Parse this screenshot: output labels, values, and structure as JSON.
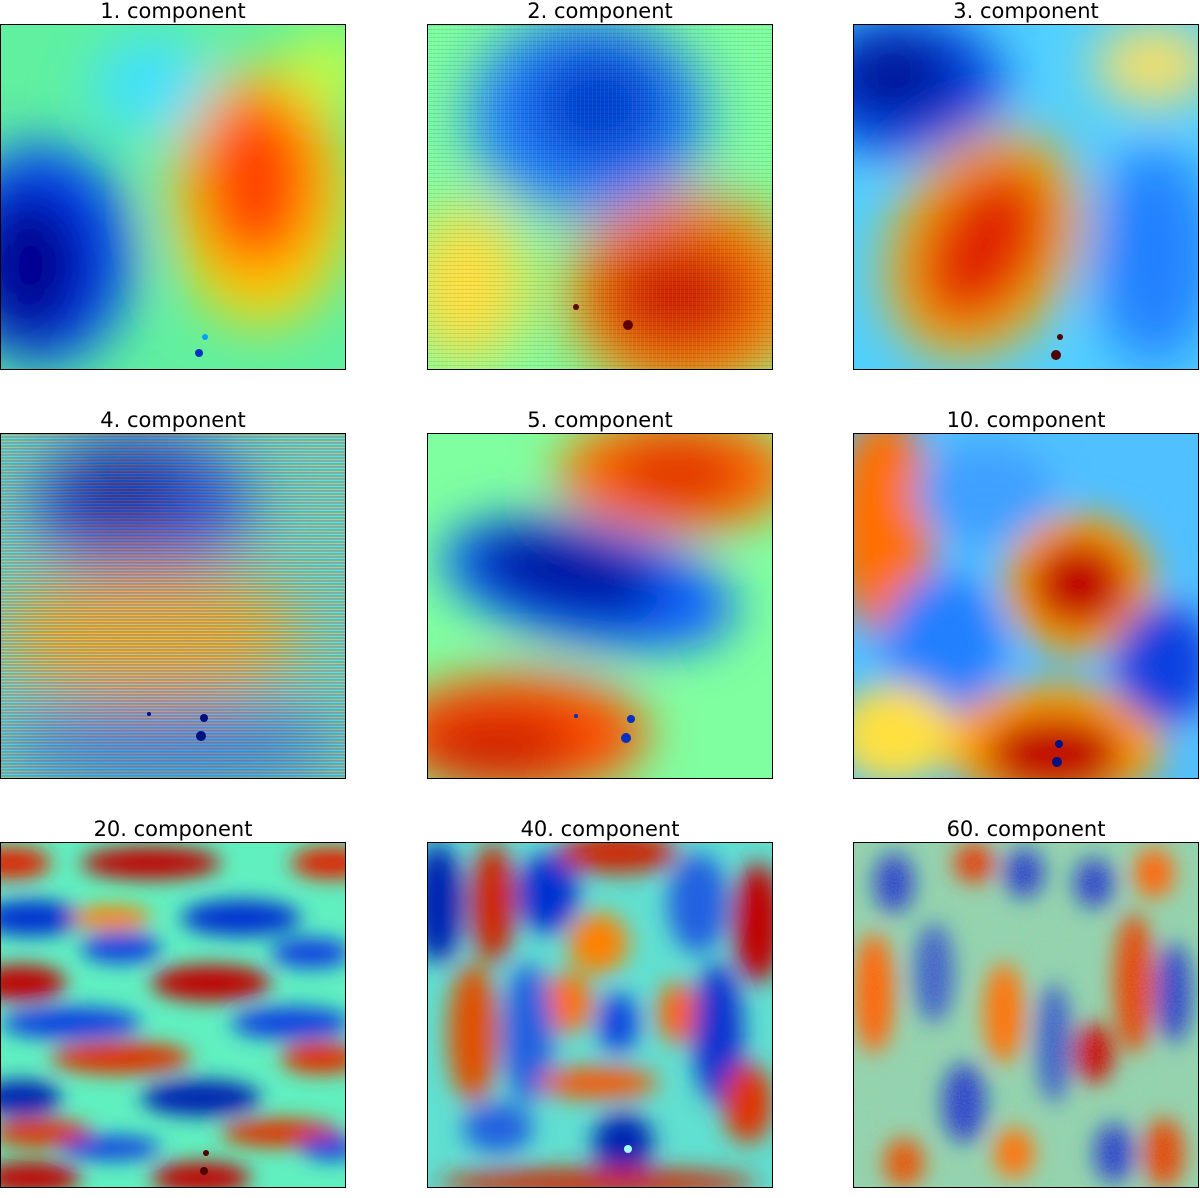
{
  "figure": {
    "panels": [
      {
        "title": "1. component",
        "pattern": "component-1"
      },
      {
        "title": "2. component",
        "pattern": "component-2"
      },
      {
        "title": "3. component",
        "pattern": "component-3"
      },
      {
        "title": "4. component",
        "pattern": "component-4"
      },
      {
        "title": "5. component",
        "pattern": "component-5"
      },
      {
        "title": "10. component",
        "pattern": "component-10"
      },
      {
        "title": "20. component",
        "pattern": "component-20"
      },
      {
        "title": "40. component",
        "pattern": "component-40"
      },
      {
        "title": "60. component",
        "pattern": "component-60"
      }
    ],
    "colormap": "jet",
    "colors": {
      "dark_blue": "#00008f",
      "blue": "#0060ff",
      "cyan": "#40e0ff",
      "green": "#7fff7f",
      "yellow": "#ffe000",
      "orange": "#ff6000",
      "dark_red": "#8f0000"
    }
  }
}
